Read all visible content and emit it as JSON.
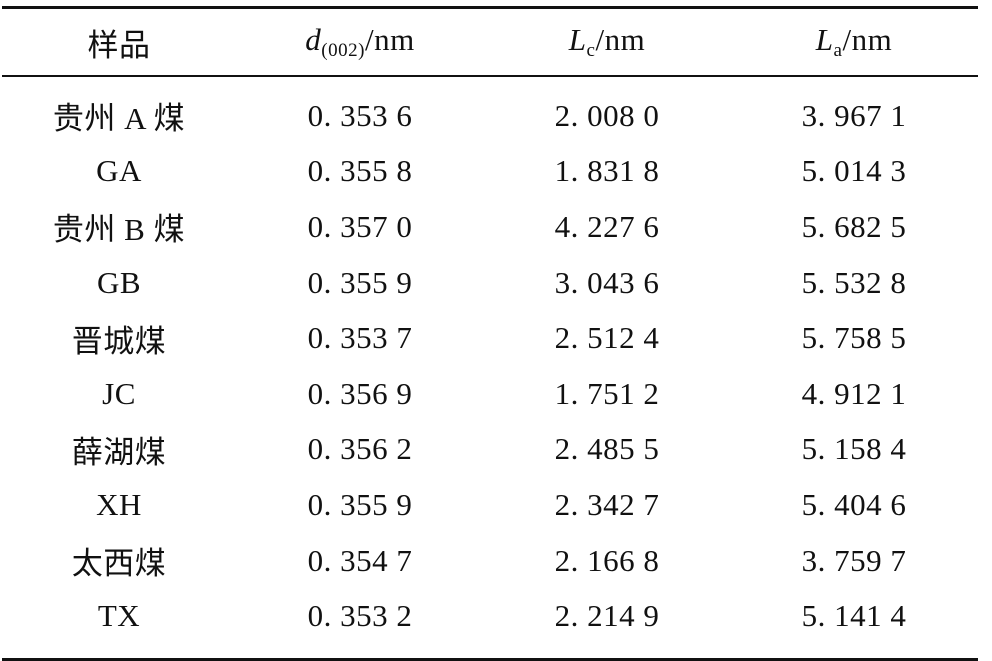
{
  "table": {
    "headers": {
      "sample": "样品",
      "d": {
        "symbol": "d",
        "subscript": "(002)",
        "unit": "/nm"
      },
      "Lc": {
        "symbol": "L",
        "subscript": "c",
        "unit": "/nm"
      },
      "La": {
        "symbol": "L",
        "subscript": "a",
        "unit": "/nm"
      }
    },
    "rows": [
      {
        "sample": "贵州 A 煤",
        "d": "0. 353 6",
        "Lc": "2. 008 0",
        "La": "3. 967 1"
      },
      {
        "sample": "GA",
        "d": "0. 355 8",
        "Lc": "1. 831 8",
        "La": "5. 014 3"
      },
      {
        "sample": "贵州 B 煤",
        "d": "0. 357 0",
        "Lc": "4. 227 6",
        "La": "5. 682 5"
      },
      {
        "sample": "GB",
        "d": "0. 355 9",
        "Lc": "3. 043 6",
        "La": "5. 532 8"
      },
      {
        "sample": "晋城煤",
        "d": "0. 353 7",
        "Lc": "2. 512 4",
        "La": "5. 758 5"
      },
      {
        "sample": "JC",
        "d": "0. 356 9",
        "Lc": "1. 751 2",
        "La": "4. 912 1"
      },
      {
        "sample": "薛湖煤",
        "d": "0. 356 2",
        "Lc": "2. 485 5",
        "La": "5. 158 4"
      },
      {
        "sample": "XH",
        "d": "0. 355 9",
        "Lc": "2. 342 7",
        "La": "5. 404 6"
      },
      {
        "sample": "太西煤",
        "d": "0. 354 7",
        "Lc": "2. 166 8",
        "La": "3. 759 7"
      },
      {
        "sample": "TX",
        "d": "0. 353 2",
        "Lc": "2. 214 9",
        "La": "5. 141 4"
      }
    ]
  }
}
